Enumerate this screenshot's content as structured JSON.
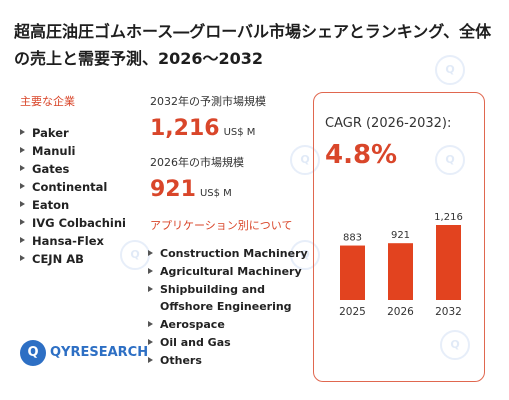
{
  "title": "超高圧油圧ゴムホース―グローバル市場シェアとランキング、全体の売上と需要予測、2026〜2032",
  "key_companies_label": "主要な企業",
  "companies": [
    "Paker",
    "Manuli",
    "Gates",
    "Continental",
    "Eaton",
    "IVG Colbachini",
    "Hansa-Flex",
    "CEJN AB"
  ],
  "market_2032_label": "2032年の予測市場規模",
  "market_2032_value": "1,216",
  "market_2026_label": "2026年の市場規模",
  "market_2026_value": "921",
  "unit": "US$ M",
  "applications_label": "アプリケーション別について",
  "applications": [
    "Construction Machinery",
    "Agricultural Machinery",
    "Shipbuilding and Offshore Engineering",
    "Aerospace",
    "Oil and Gas",
    "Others"
  ],
  "cagr_label": "CAGR (2026-2032):",
  "cagr_value": "4.8%",
  "logo_text": "QYRESEARCH",
  "colors": {
    "accent": "#d9462a",
    "bar": "#e2431f",
    "box_border": "#e0674f",
    "logo": "#2d6fc4"
  },
  "chart_data": {
    "type": "bar",
    "categories": [
      "2025",
      "2026",
      "2032"
    ],
    "values": [
      883,
      921,
      1216
    ],
    "value_labels": [
      "883",
      "921",
      "1,216"
    ]
  }
}
